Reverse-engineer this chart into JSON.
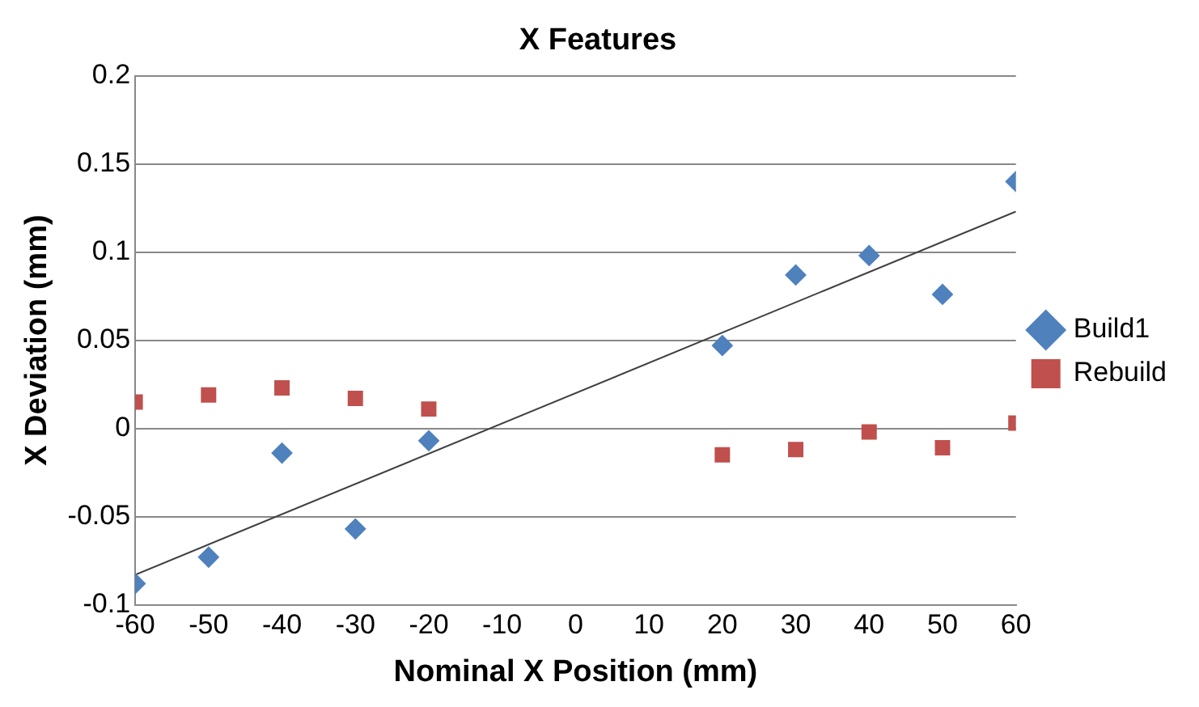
{
  "chart_data": {
    "type": "scatter",
    "title": "X Features",
    "xlabel": "Nominal X Position (mm)",
    "ylabel": "X Deviation (mm)",
    "x": [
      -60,
      -50,
      -40,
      -30,
      -20,
      20,
      30,
      40,
      50,
      60
    ],
    "series": [
      {
        "name": "Build1",
        "color": "#4f81bd",
        "marker": "diamond",
        "values": [
          -0.088,
          -0.073,
          -0.014,
          -0.057,
          -0.007,
          0.047,
          0.087,
          0.098,
          0.076,
          0.14
        ]
      },
      {
        "name": "Rebuild",
        "color": "#c0504d",
        "marker": "square",
        "values": [
          0.015,
          0.019,
          0.023,
          0.017,
          0.011,
          -0.015,
          -0.012,
          -0.002,
          -0.011,
          0.003
        ]
      },
      {
        "type": "line",
        "color": "#404040",
        "x": [
          -60,
          60
        ],
        "values": [
          -0.083,
          0.123
        ]
      }
    ],
    "xlim": [
      -60,
      60
    ],
    "xticks": [
      -60,
      -50,
      -40,
      -30,
      -20,
      -10,
      0,
      10,
      20,
      30,
      40,
      50,
      60
    ],
    "ylim": [
      -0.1,
      0.2
    ],
    "yticks": [
      -0.1,
      -0.05,
      0,
      0.05,
      0.1,
      0.15,
      0.2
    ],
    "grid": "y",
    "legend": "right"
  }
}
